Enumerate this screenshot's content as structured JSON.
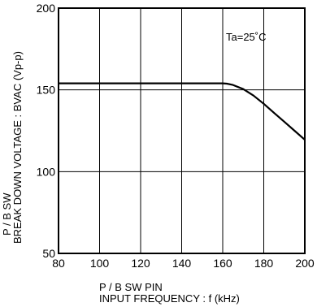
{
  "chart_data": {
    "type": "line",
    "xlabel_lines": [
      "P / B  SW  PIN",
      "INPUT  FREQUENCY : f (kHz)"
    ],
    "ylabel_lines": [
      "P / B SW",
      "BREAK  DOWN  VOLTAGE : BVAC (Vp-p)"
    ],
    "annotation": "Ta=25˚C",
    "xlim": [
      80,
      200
    ],
    "ylim": [
      50,
      200
    ],
    "x_ticks": [
      "80",
      "100",
      "120",
      "140",
      "160",
      "180",
      "200"
    ],
    "y_ticks": [
      "50",
      "100",
      "150",
      "200"
    ],
    "x_tick_values": [
      80,
      100,
      120,
      140,
      160,
      180,
      200
    ],
    "y_tick_values": [
      50,
      100,
      150,
      200
    ],
    "grid": true,
    "series": [
      {
        "x": [
          80,
          100,
          120,
          140,
          160,
          162,
          165,
          170,
          175,
          180,
          185,
          190,
          195,
          200
        ],
        "y": [
          154,
          154,
          154,
          154,
          154,
          153.8,
          153,
          150.5,
          146.5,
          141.5,
          136,
          130.5,
          125,
          119.5
        ]
      }
    ]
  }
}
